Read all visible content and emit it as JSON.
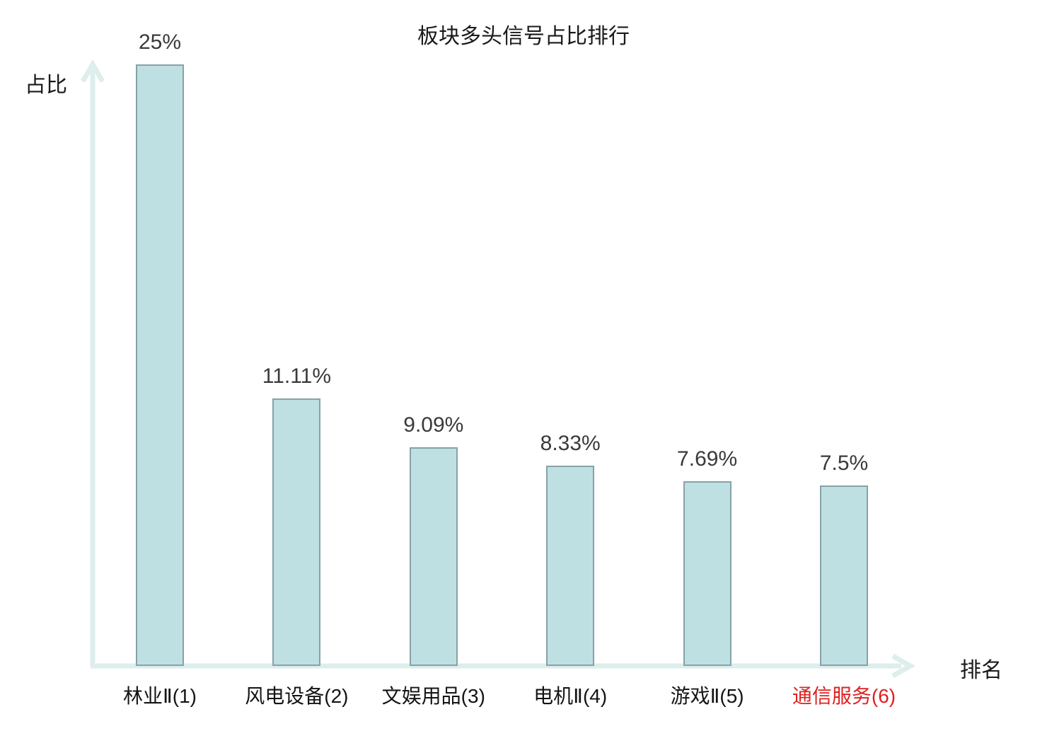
{
  "title": "板块多头信号占比排行",
  "colors": {
    "bar_fill": "#bfe0e2",
    "bar_border": "#87a2a7",
    "axis": "#ddeeec",
    "value_label": "#3a3a3a",
    "category_label": "#141414",
    "highlight_category": "#e02020"
  },
  "chart_data": {
    "type": "bar",
    "title": "板块多头信号占比排行",
    "xlabel": "排名",
    "ylabel": "占比",
    "categories": [
      "林业Ⅱ(1)",
      "风电设备(2)",
      "文娱用品(3)",
      "电机Ⅱ(4)",
      "游戏Ⅱ(5)",
      "通信服务(6)"
    ],
    "values": [
      25,
      11.11,
      9.09,
      8.33,
      7.69,
      7.5
    ],
    "value_labels": [
      "25%",
      "11.11%",
      "9.09%",
      "8.33%",
      "7.69%",
      "7.5%"
    ],
    "ylim": [
      0,
      25
    ],
    "grid": false,
    "legend": "none",
    "bar_color": "#bfe0e2",
    "highlighted_category_index": 5,
    "highlighted_category_color": "#e02020"
  }
}
